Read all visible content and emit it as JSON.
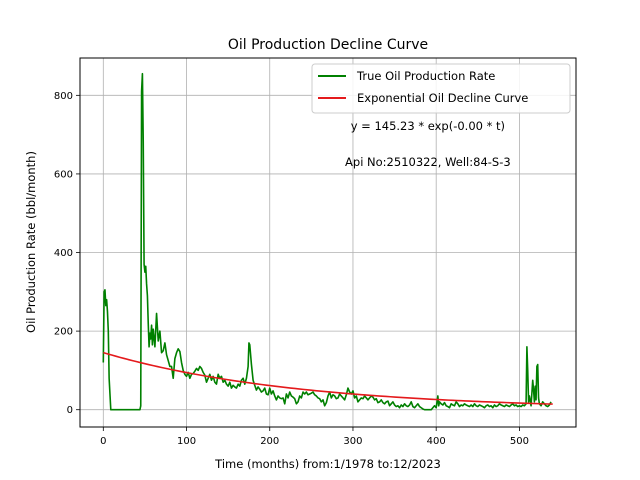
{
  "chart_data": {
    "type": "line",
    "title": "Oil Production Decline Curve",
    "xlabel": "Time (months) from:1/1978 to:12/2023",
    "ylabel": "Oil Production Rate (bbl/month)",
    "xlim": [
      -28,
      568
    ],
    "ylim": [
      -44,
      895
    ],
    "xticks": [
      0,
      100,
      200,
      300,
      400,
      500
    ],
    "yticks": [
      0,
      200,
      400,
      600,
      800
    ],
    "grid": true,
    "legend_position": "top-right",
    "annotations": [
      {
        "text": "y = 145.23 * exp(-0.00 * t)",
        "x": 390,
        "y": 712
      },
      {
        "text": "Api No:2510322, Well:84-S-3",
        "x": 390,
        "y": 620
      }
    ],
    "series": [
      {
        "name": "True Oil Production Rate",
        "color": "#008000",
        "points": [
          [
            0,
            120
          ],
          [
            1,
            300
          ],
          [
            2,
            305
          ],
          [
            3,
            265
          ],
          [
            4,
            280
          ],
          [
            5,
            250
          ],
          [
            6,
            200
          ],
          [
            7,
            80
          ],
          [
            8,
            40
          ],
          [
            9,
            0
          ],
          [
            12,
            0
          ],
          [
            20,
            0
          ],
          [
            30,
            0
          ],
          [
            40,
            0
          ],
          [
            44,
            0
          ],
          [
            45,
            10
          ],
          [
            46,
            810
          ],
          [
            47,
            855
          ],
          [
            48,
            680
          ],
          [
            49,
            370
          ],
          [
            50,
            350
          ],
          [
            51,
            365
          ],
          [
            52,
            320
          ],
          [
            53,
            290
          ],
          [
            54,
            220
          ],
          [
            55,
            160
          ],
          [
            56,
            195
          ],
          [
            57,
            180
          ],
          [
            58,
            215
          ],
          [
            59,
            165
          ],
          [
            60,
            205
          ],
          [
            62,
            160
          ],
          [
            64,
            245
          ],
          [
            66,
            175
          ],
          [
            68,
            200
          ],
          [
            70,
            145
          ],
          [
            72,
            150
          ],
          [
            74,
            170
          ],
          [
            76,
            140
          ],
          [
            78,
            125
          ],
          [
            80,
            110
          ],
          [
            82,
            110
          ],
          [
            84,
            80
          ],
          [
            86,
            130
          ],
          [
            88,
            145
          ],
          [
            90,
            155
          ],
          [
            92,
            148
          ],
          [
            94,
            120
          ],
          [
            96,
            100
          ],
          [
            98,
            90
          ],
          [
            100,
            85
          ],
          [
            102,
            95
          ],
          [
            104,
            80
          ],
          [
            106,
            90
          ],
          [
            108,
            92
          ],
          [
            110,
            98
          ],
          [
            112,
            105
          ],
          [
            114,
            100
          ],
          [
            116,
            110
          ],
          [
            118,
            105
          ],
          [
            120,
            95
          ],
          [
            122,
            88
          ],
          [
            124,
            70
          ],
          [
            126,
            80
          ],
          [
            128,
            90
          ],
          [
            130,
            75
          ],
          [
            132,
            85
          ],
          [
            134,
            70
          ],
          [
            136,
            65
          ],
          [
            138,
            90
          ],
          [
            140,
            80
          ],
          [
            142,
            85
          ],
          [
            144,
            70
          ],
          [
            146,
            75
          ],
          [
            148,
            65
          ],
          [
            150,
            60
          ],
          [
            152,
            70
          ],
          [
            154,
            55
          ],
          [
            156,
            62
          ],
          [
            158,
            58
          ],
          [
            160,
            55
          ],
          [
            162,
            65
          ],
          [
            164,
            60
          ],
          [
            166,
            75
          ],
          [
            168,
            80
          ],
          [
            170,
            65
          ],
          [
            172,
            80
          ],
          [
            174,
            110
          ],
          [
            175,
            170
          ],
          [
            176,
            165
          ],
          [
            178,
            115
          ],
          [
            180,
            75
          ],
          [
            182,
            62
          ],
          [
            184,
            50
          ],
          [
            186,
            58
          ],
          [
            188,
            52
          ],
          [
            190,
            45
          ],
          [
            192,
            48
          ],
          [
            194,
            55
          ],
          [
            196,
            40
          ],
          [
            198,
            38
          ],
          [
            200,
            55
          ],
          [
            202,
            40
          ],
          [
            204,
            48
          ],
          [
            206,
            35
          ],
          [
            208,
            25
          ],
          [
            210,
            35
          ],
          [
            212,
            30
          ],
          [
            214,
            28
          ],
          [
            216,
            30
          ],
          [
            218,
            15
          ],
          [
            220,
            40
          ],
          [
            222,
            30
          ],
          [
            224,
            45
          ],
          [
            226,
            35
          ],
          [
            228,
            32
          ],
          [
            230,
            28
          ],
          [
            232,
            15
          ],
          [
            234,
            20
          ],
          [
            236,
            35
          ],
          [
            238,
            30
          ],
          [
            240,
            45
          ],
          [
            242,
            40
          ],
          [
            244,
            45
          ],
          [
            246,
            38
          ],
          [
            248,
            40
          ],
          [
            250,
            42
          ],
          [
            252,
            45
          ],
          [
            254,
            38
          ],
          [
            256,
            35
          ],
          [
            258,
            30
          ],
          [
            260,
            28
          ],
          [
            262,
            20
          ],
          [
            264,
            25
          ],
          [
            266,
            10
          ],
          [
            268,
            18
          ],
          [
            270,
            35
          ],
          [
            272,
            45
          ],
          [
            274,
            30
          ],
          [
            276,
            38
          ],
          [
            278,
            35
          ],
          [
            280,
            28
          ],
          [
            282,
            30
          ],
          [
            284,
            40
          ],
          [
            286,
            35
          ],
          [
            288,
            30
          ],
          [
            290,
            25
          ],
          [
            292,
            38
          ],
          [
            294,
            55
          ],
          [
            296,
            45
          ],
          [
            298,
            40
          ],
          [
            300,
            48
          ],
          [
            302,
            30
          ],
          [
            304,
            35
          ],
          [
            306,
            20
          ],
          [
            308,
            25
          ],
          [
            310,
            30
          ],
          [
            312,
            28
          ],
          [
            314,
            35
          ],
          [
            316,
            30
          ],
          [
            318,
            25
          ],
          [
            320,
            30
          ],
          [
            322,
            35
          ],
          [
            324,
            32
          ],
          [
            326,
            25
          ],
          [
            328,
            28
          ],
          [
            330,
            18
          ],
          [
            332,
            20
          ],
          [
            334,
            25
          ],
          [
            336,
            18
          ],
          [
            338,
            15
          ],
          [
            340,
            20
          ],
          [
            342,
            22
          ],
          [
            344,
            10
          ],
          [
            346,
            15
          ],
          [
            348,
            20
          ],
          [
            350,
            12
          ],
          [
            352,
            8
          ],
          [
            354,
            10
          ],
          [
            356,
            5
          ],
          [
            358,
            12
          ],
          [
            360,
            8
          ],
          [
            362,
            15
          ],
          [
            364,
            10
          ],
          [
            366,
            8
          ],
          [
            368,
            12
          ],
          [
            370,
            20
          ],
          [
            372,
            8
          ],
          [
            374,
            5
          ],
          [
            376,
            10
          ],
          [
            378,
            15
          ],
          [
            380,
            8
          ],
          [
            382,
            5
          ],
          [
            384,
            2
          ],
          [
            386,
            0
          ],
          [
            390,
            0
          ],
          [
            394,
            0
          ],
          [
            396,
            5
          ],
          [
            398,
            10
          ],
          [
            400,
            5
          ],
          [
            402,
            35
          ],
          [
            403,
            10
          ],
          [
            404,
            20
          ],
          [
            406,
            15
          ],
          [
            408,
            12
          ],
          [
            410,
            18
          ],
          [
            412,
            10
          ],
          [
            414,
            8
          ],
          [
            416,
            5
          ],
          [
            418,
            15
          ],
          [
            420,
            12
          ],
          [
            422,
            10
          ],
          [
            424,
            20
          ],
          [
            426,
            15
          ],
          [
            428,
            8
          ],
          [
            430,
            12
          ],
          [
            432,
            10
          ],
          [
            434,
            15
          ],
          [
            436,
            12
          ],
          [
            438,
            10
          ],
          [
            440,
            8
          ],
          [
            442,
            12
          ],
          [
            444,
            8
          ],
          [
            446,
            15
          ],
          [
            448,
            10
          ],
          [
            450,
            8
          ],
          [
            452,
            12
          ],
          [
            454,
            10
          ],
          [
            456,
            8
          ],
          [
            458,
            5
          ],
          [
            460,
            10
          ],
          [
            462,
            12
          ],
          [
            464,
            8
          ],
          [
            466,
            10
          ],
          [
            468,
            5
          ],
          [
            470,
            12
          ],
          [
            472,
            8
          ],
          [
            474,
            10
          ],
          [
            476,
            15
          ],
          [
            478,
            12
          ],
          [
            480,
            10
          ],
          [
            482,
            8
          ],
          [
            484,
            12
          ],
          [
            486,
            10
          ],
          [
            488,
            8
          ],
          [
            490,
            12
          ],
          [
            492,
            15
          ],
          [
            494,
            10
          ],
          [
            496,
            12
          ],
          [
            498,
            8
          ],
          [
            500,
            10
          ],
          [
            502,
            8
          ],
          [
            504,
            12
          ],
          [
            506,
            10
          ],
          [
            508,
            15
          ],
          [
            509,
            160
          ],
          [
            510,
            100
          ],
          [
            511,
            20
          ],
          [
            512,
            35
          ],
          [
            514,
            10
          ],
          [
            516,
            75
          ],
          [
            517,
            50
          ],
          [
            518,
            20
          ],
          [
            519,
            60
          ],
          [
            520,
            25
          ],
          [
            521,
            110
          ],
          [
            522,
            115
          ],
          [
            523,
            30
          ],
          [
            524,
            15
          ],
          [
            526,
            10
          ],
          [
            528,
            20
          ],
          [
            530,
            15
          ],
          [
            532,
            10
          ],
          [
            534,
            8
          ],
          [
            536,
            12
          ],
          [
            538,
            20
          ]
        ]
      },
      {
        "name": "Exponential Oil Decline Curve",
        "color": "#e41a1c",
        "model": {
          "a": 145.23,
          "b": 0.0043,
          "t_start": 0,
          "t_end": 540
        }
      }
    ]
  }
}
